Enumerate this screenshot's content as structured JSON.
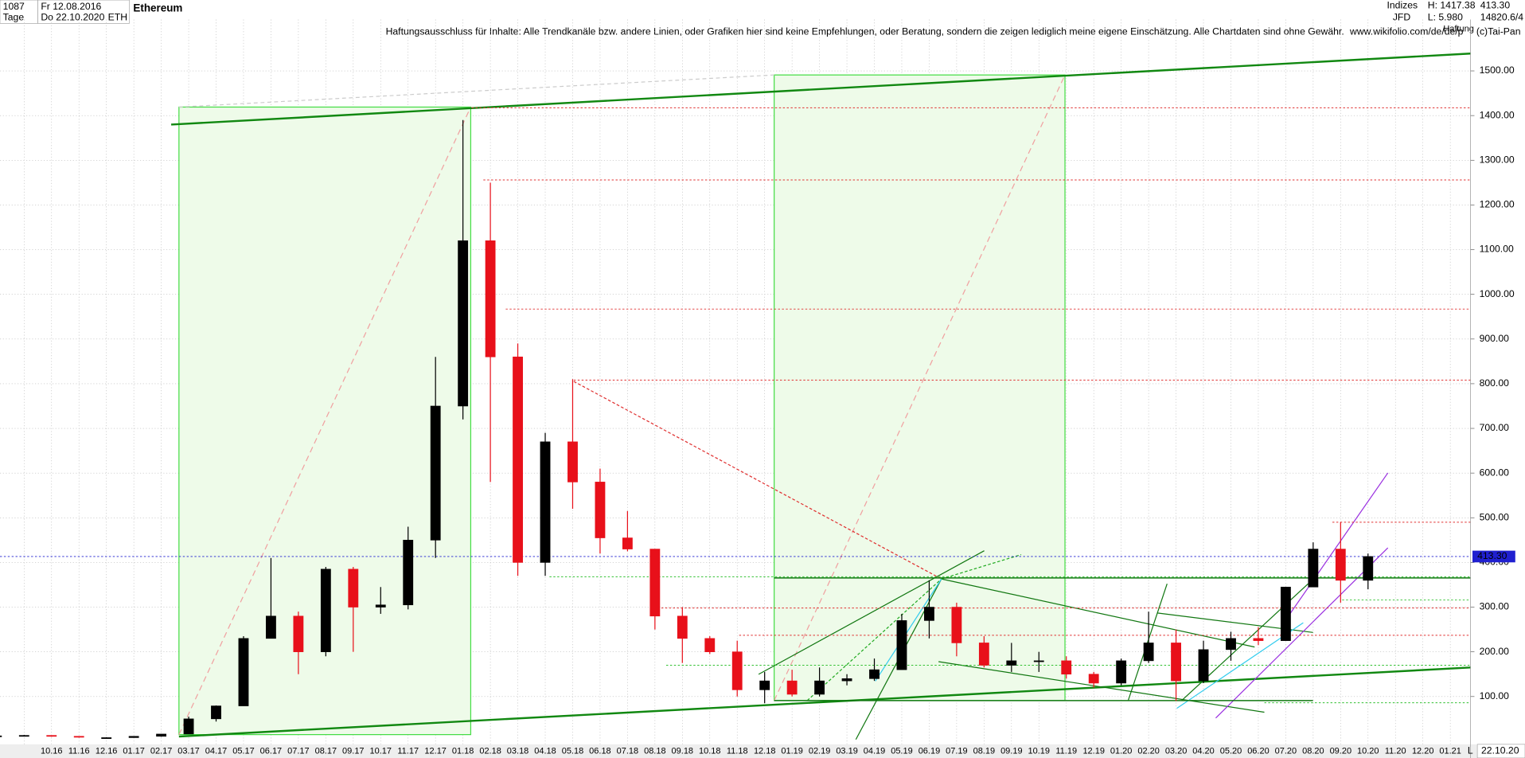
{
  "header": {
    "count": "1087",
    "start": "Fr 12.08.2016",
    "period": "Tage",
    "end": "Do 22.10.2020",
    "symbol": "ETH",
    "title": "Ethereum",
    "group": "Indizes",
    "source": "JFD",
    "high": "H: 1417.38",
    "low": "L: 5.980",
    "last": "413.30",
    "id": "14820.6/4",
    "disclaimer": "Haftungsausschluss für Inhalte: Alle Trendkanäle bzw. andere Linien, oder Grafiken hier sind keine Empfehlungen, oder Beratung, sondern die zeigen lediglich meine eigene Einschätzung. Alle Chartdaten sind ohne Gewähr.",
    "url": "www.wikifolio.com/de/de/p",
    "liability": "Haftung",
    "copyright": "(c)Tai-Pan",
    "date_box": "22.10.20",
    "scale_mode": "L"
  },
  "chart_data": {
    "type": "candlestick",
    "title": "Ethereum",
    "categories": [
      null,
      null,
      "10.16",
      "11.16",
      "12.16",
      "01.17",
      "02.17",
      "03.17",
      "04.17",
      "05.17",
      "06.17",
      "07.17",
      "08.17",
      "09.17",
      "10.17",
      "11.17",
      "12.17",
      "01.18",
      "02.18",
      "03.18",
      "04.18",
      "05.18",
      "06.18",
      "07.18",
      "08.18",
      "09.18",
      "10.18",
      "11.18",
      "12.18",
      "01.19",
      "02.19",
      "03.19",
      "04.19",
      "05.19",
      "06.19",
      "07.19",
      "08.19",
      "09.19",
      "10.19",
      "11.19",
      "12.19",
      "01.20",
      "02.20",
      "03.20",
      "04.20",
      "05.20",
      "06.20",
      "07.20",
      "08.20",
      "09.20",
      "10.20",
      "11.20",
      "12.20",
      "01.21"
    ],
    "open": [
      11,
      12,
      13,
      11,
      8,
      8,
      11,
      16,
      50,
      79,
      230,
      280,
      200,
      385,
      300,
      305,
      450,
      750,
      1120,
      860,
      400,
      670,
      580,
      455,
      430,
      280,
      230,
      200,
      115,
      135,
      105,
      135,
      140,
      160,
      270,
      300,
      220,
      170,
      180,
      180,
      150,
      130,
      180,
      220,
      135,
      205,
      230,
      225,
      345,
      430,
      360,
      null,
      null,
      null
    ],
    "high": [
      12,
      14,
      13,
      11,
      9,
      11,
      16,
      55,
      80,
      235,
      410,
      290,
      390,
      390,
      345,
      480,
      860,
      1390,
      1250,
      890,
      690,
      810,
      610,
      515,
      430,
      300,
      235,
      225,
      155,
      160,
      165,
      150,
      185,
      285,
      360,
      310,
      235,
      220,
      200,
      190,
      155,
      185,
      290,
      250,
      225,
      245,
      255,
      345,
      445,
      490,
      420,
      null,
      null,
      null
    ],
    "low": [
      10,
      11,
      10,
      8,
      7,
      8,
      10,
      16,
      44,
      79,
      230,
      150,
      190,
      200,
      285,
      295,
      410,
      720,
      580,
      370,
      370,
      520,
      420,
      425,
      250,
      175,
      195,
      100,
      85,
      100,
      100,
      125,
      135,
      160,
      230,
      190,
      165,
      155,
      155,
      140,
      120,
      125,
      175,
      90,
      130,
      180,
      215,
      225,
      345,
      310,
      340,
      null,
      null,
      null
    ],
    "close": [
      12,
      13,
      11,
      9,
      8,
      11,
      16,
      50,
      79,
      230,
      280,
      200,
      385,
      300,
      305,
      450,
      750,
      1120,
      860,
      400,
      670,
      580,
      455,
      430,
      280,
      230,
      200,
      115,
      135,
      105,
      135,
      140,
      160,
      270,
      300,
      220,
      170,
      180,
      180,
      150,
      130,
      180,
      220,
      135,
      205,
      230,
      225,
      345,
      430,
      360,
      413.3,
      null,
      null,
      null
    ],
    "up_color": "#000000",
    "down_color": "#e8101a",
    "ylim": [
      -7,
      1615
    ],
    "yticks": [
      {
        "value": 100,
        "label": "100.00"
      },
      {
        "value": 200,
        "label": "200.00"
      },
      {
        "value": 300,
        "label": "300.00"
      },
      {
        "value": 400,
        "label": "400.00"
      },
      {
        "value": 500,
        "label": "500.00"
      },
      {
        "value": 600,
        "label": "600.00"
      },
      {
        "value": 700,
        "label": "700.00"
      },
      {
        "value": 800,
        "label": "800.00"
      },
      {
        "value": 900,
        "label": "900.00"
      },
      {
        "value": 1000,
        "label": "1000.00"
      },
      {
        "value": 1100,
        "label": "1100.00"
      },
      {
        "value": 1200,
        "label": "1200.00"
      },
      {
        "value": 1300,
        "label": "1300.00"
      },
      {
        "value": 1400,
        "label": "1400.00"
      },
      {
        "value": 1500,
        "label": "1500.00"
      }
    ],
    "grid": true,
    "levels": [
      {
        "value": 1417.38,
        "color": "#e03030"
      },
      {
        "value": 1256,
        "color": "#e03030"
      },
      {
        "value": 967,
        "color": "#e03030"
      },
      {
        "value": 808,
        "color": "#e03030"
      },
      {
        "value": 490,
        "color": "#e03030"
      },
      {
        "value": 413.3,
        "color": "#2020d0",
        "label": "413.30"
      },
      {
        "value": 368,
        "color": "#30c030"
      },
      {
        "value": 316,
        "color": "#30c030"
      },
      {
        "value": 298,
        "color": "#e03030"
      },
      {
        "value": 237,
        "color": "#e03030"
      },
      {
        "value": 170,
        "color": "#30c030"
      },
      {
        "value": 86,
        "color": "#30c030"
      }
    ]
  }
}
